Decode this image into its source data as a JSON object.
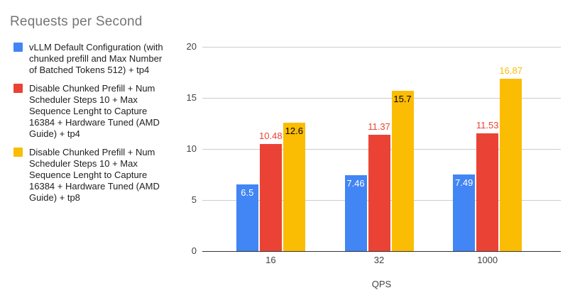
{
  "chart_data": {
    "type": "bar",
    "title": "Requests per Second",
    "xlabel": "QPS",
    "ylabel": "",
    "categories": [
      "16",
      "32",
      "1000"
    ],
    "ylim": [
      0,
      20
    ],
    "yticks": [
      0,
      5,
      10,
      15,
      20
    ],
    "grid": true,
    "legend_position": "left",
    "series": [
      {
        "name": "vLLM Default Configuration (with chunked prefill and Max Number of Batched Tokens 512) + tp4",
        "color": "#4285f4",
        "values": [
          6.5,
          7.46,
          7.49
        ],
        "labels": [
          {
            "text": "6.5",
            "placement": "inside",
            "color": "#ffffff"
          },
          {
            "text": "7.46",
            "placement": "inside",
            "color": "#ffffff"
          },
          {
            "text": "7.49",
            "placement": "inside",
            "color": "#ffffff"
          }
        ]
      },
      {
        "name": "Disable Chunked Prefill + Num Scheduler Steps 10 + Max Sequence Lenght to Capture 16384 + Hardware Tuned (AMD Guide) + tp4",
        "color": "#ea4335",
        "values": [
          10.48,
          11.37,
          11.53
        ],
        "labels": [
          {
            "text": "10.48",
            "placement": "above",
            "color": "#ea4335"
          },
          {
            "text": "11.37",
            "placement": "above",
            "color": "#ea4335"
          },
          {
            "text": "11.53",
            "placement": "above",
            "color": "#ea4335"
          }
        ]
      },
      {
        "name": "Disable Chunked Prefill + Num Scheduler Steps 10 + Max Sequence Lenght to Capture 16384 + Hardware Tuned (AMD Guide) + tp8",
        "color": "#fbbc04",
        "values": [
          12.6,
          15.7,
          16.87
        ],
        "labels": [
          {
            "text": "12.6",
            "placement": "inside",
            "color": "#000000"
          },
          {
            "text": "15.7",
            "placement": "inside",
            "color": "#000000"
          },
          {
            "text": "16.87",
            "placement": "above",
            "color": "#fbbc04"
          }
        ]
      }
    ],
    "colors": {
      "title": "#757575",
      "axis_tick": "#424242",
      "gridline": "#cccccc",
      "baseline": "#333333",
      "legend_text": "#212121"
    }
  }
}
